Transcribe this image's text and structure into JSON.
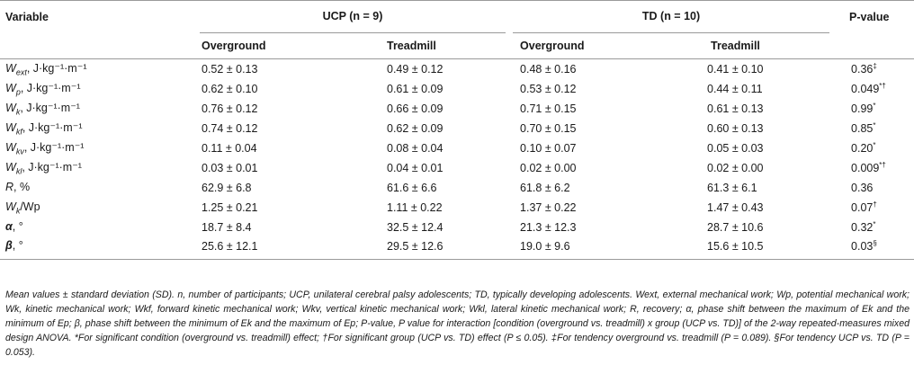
{
  "table": {
    "header": {
      "variable": "Variable",
      "group1_name": "UCP",
      "group1_n": "(n = 9)",
      "group2_name": "TD",
      "group2_n": "(n = 10)",
      "pvalue_label": "P-value",
      "sub_overground": "Overground",
      "sub_treadmill": "Treadmill"
    },
    "rows": [
      {
        "var_base": "W",
        "var_sub": "ext",
        "var_unit": ", J·kg⁻¹·m⁻¹",
        "ucp_o": "0.52 ± 0.13",
        "ucp_t": "0.49 ± 0.12",
        "td_o": "0.48 ± 0.16",
        "td_t": "0.41 ± 0.10",
        "p": "0.36",
        "p_mark": "‡"
      },
      {
        "var_base": "W",
        "var_sub": "p",
        "var_unit": ", J·kg⁻¹·m⁻¹",
        "ucp_o": "0.62 ± 0.10",
        "ucp_t": "0.61 ± 0.09",
        "td_o": "0.53 ± 0.12",
        "td_t": "0.44 ± 0.11",
        "p": "0.049",
        "p_mark": "*†"
      },
      {
        "var_base": "W",
        "var_sub": "k",
        "var_unit": ", J·kg⁻¹·m⁻¹",
        "ucp_o": "0.76 ± 0.12",
        "ucp_t": "0.66 ± 0.09",
        "td_o": "0.71 ± 0.15",
        "td_t": "0.61 ± 0.13",
        "p": "0.99",
        "p_mark": "*"
      },
      {
        "var_base": "W",
        "var_sub": "kf",
        "var_unit": ", J·kg⁻¹·m⁻¹",
        "ucp_o": "0.74 ± 0.12",
        "ucp_t": "0.62 ± 0.09",
        "td_o": "0.70 ± 0.15",
        "td_t": "0.60 ± 0.13",
        "p": "0.85",
        "p_mark": "*"
      },
      {
        "var_base": "W",
        "var_sub": "kv",
        "var_unit": ", J·kg⁻¹·m⁻¹",
        "ucp_o": "0.11 ± 0.04",
        "ucp_t": "0.08 ± 0.04",
        "td_o": "0.10 ± 0.07",
        "td_t": "0.05 ± 0.03",
        "p": "0.20",
        "p_mark": "*"
      },
      {
        "var_base": "W",
        "var_sub": "kl",
        "var_unit": ", J·kg⁻¹·m⁻¹",
        "ucp_o": "0.03 ± 0.01",
        "ucp_t": "0.04 ± 0.01",
        "td_o": "0.02 ± 0.00",
        "td_t": "0.02 ± 0.00",
        "p": "0.009",
        "p_mark": "*†"
      },
      {
        "var_base": "R",
        "var_sub": "",
        "var_unit": ", %",
        "ucp_o": "62.9 ± 6.8",
        "ucp_t": "61.6 ± 6.6",
        "td_o": "61.8 ± 6.2",
        "td_t": "61.3 ± 6.1",
        "p": "0.36",
        "p_mark": ""
      },
      {
        "var_base": "W",
        "var_sub": "k",
        "var_unit": "/Wp",
        "ucp_o": "1.25 ± 0.21",
        "ucp_t": "1.11 ± 0.22",
        "td_o": "1.37 ± 0.22",
        "td_t": "1.47 ± 0.43",
        "p": "0.07",
        "p_mark": "†"
      },
      {
        "var_base": "α",
        "var_sub": "",
        "var_unit": ", °",
        "ucp_o": "18.7 ± 8.4",
        "ucp_t": "32.5 ± 12.4",
        "td_o": "21.3 ± 12.3",
        "td_t": "28.7 ± 10.6",
        "p": "0.32",
        "p_mark": "*"
      },
      {
        "var_base": "β",
        "var_sub": "",
        "var_unit": ", °",
        "ucp_o": "25.6 ± 12.1",
        "ucp_t": "29.5 ± 12.6",
        "td_o": "19.0 ± 9.6",
        "td_t": "15.6 ± 10.5",
        "p": "0.03",
        "p_mark": "§"
      }
    ],
    "footnote": "Mean values ± standard deviation (SD). n, number of participants; UCP, unilateral cerebral palsy adolescents; TD, typically developing adolescents. Wext, external mechanical work; Wp, potential mechanical work; Wk, kinetic mechanical work; Wkf, forward kinetic mechanical work; Wkv, vertical kinetic mechanical work; Wkl, lateral kinetic mechanical work; R, recovery; α, phase shift between the maximum of Ek and the minimum of Ep; β, phase shift between the minimum of Ek and the maximum of Ep; P-value, P value for interaction [condition (overground vs. treadmill) x group (UCP vs. TD)] of the 2-way repeated-measures mixed design ANOVA. *For significant condition (overground vs. treadmill) effect; †For significant group (UCP vs. TD) effect (P ≤ 0.05). ‡For tendency overground vs. treadmill (P = 0.089). §For tendency UCP vs. TD (P = 0.053)."
  }
}
